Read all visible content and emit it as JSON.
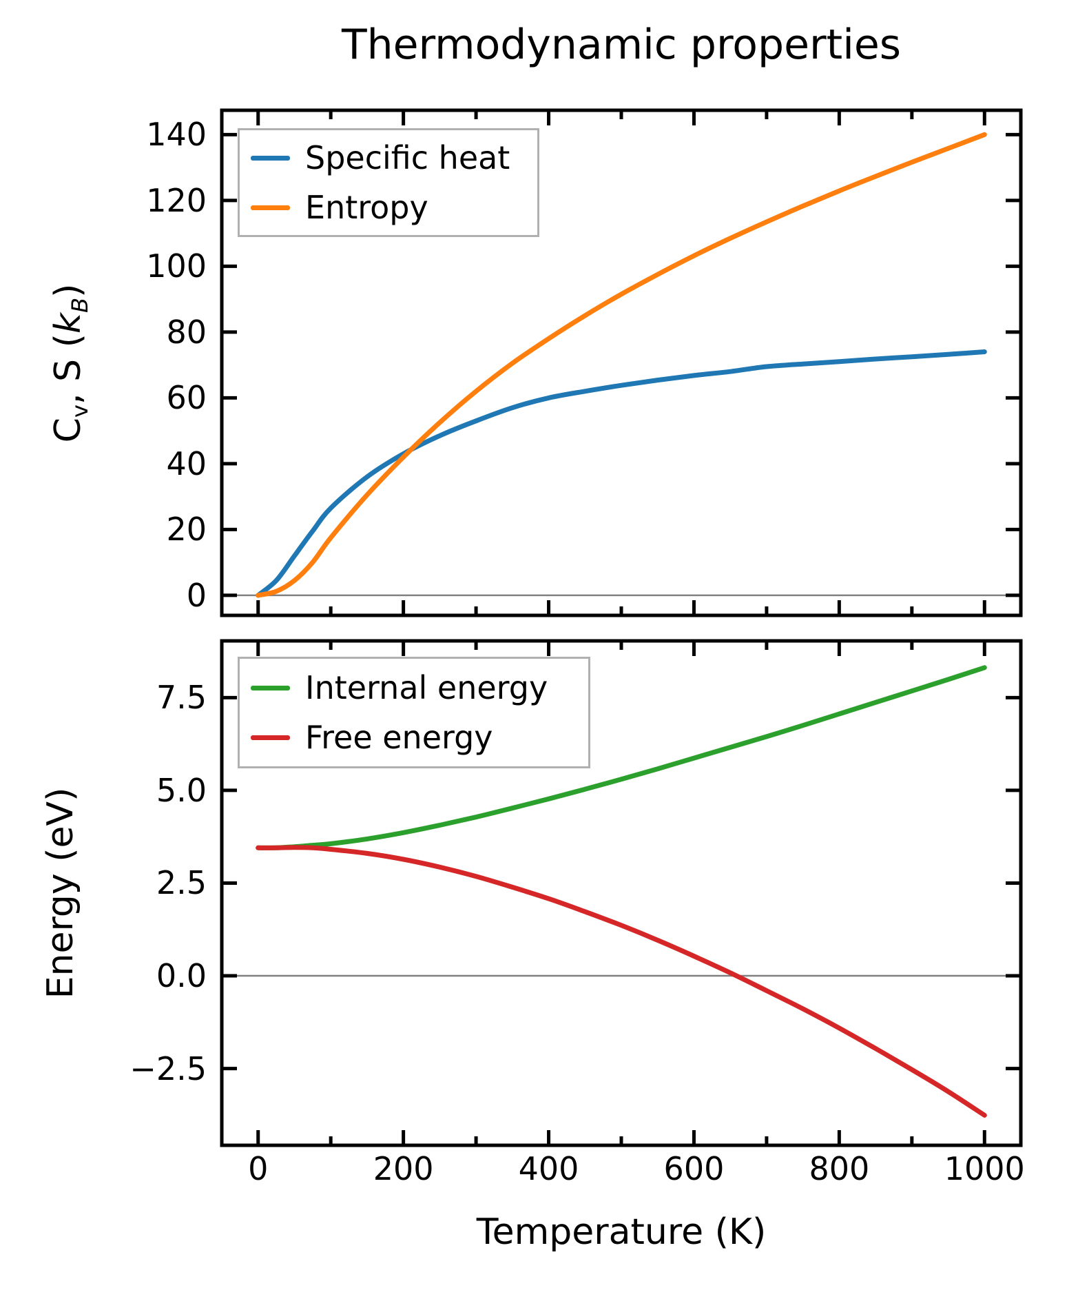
{
  "figure": {
    "title": "Thermodynamic properties"
  },
  "colors": {
    "specific_heat": "#1f77b4",
    "entropy": "#ff7f0e",
    "internal_energy": "#2ca02c",
    "free_energy": "#d62728",
    "zero_line": "#808080",
    "legend_border": "#b0b0b0",
    "axis": "#000000",
    "background": "#ffffff"
  },
  "x_axis": {
    "label": "Temperature (K)",
    "tick_labels": [
      "0",
      "200",
      "400",
      "600",
      "800",
      "1000"
    ],
    "tick_values": [
      0,
      200,
      400,
      600,
      800,
      1000
    ],
    "minor_tick_values": [
      100,
      300,
      500,
      700,
      900
    ]
  },
  "chart_data": [
    {
      "type": "line",
      "ylabel": "Cv, S (kB)",
      "ylabel_parts": {
        "base": "C",
        "base_sub": "v",
        "mid": ", S (",
        "k": "k",
        "k_sub": "B",
        "close": ")"
      },
      "xlim": [
        -50,
        1050
      ],
      "ylim": [
        -6.1,
        147.4
      ],
      "ytick_labels": [
        "0",
        "20",
        "40",
        "60",
        "80",
        "100",
        "120",
        "140"
      ],
      "ytick_values": [
        0,
        20,
        40,
        60,
        80,
        100,
        120,
        140
      ],
      "zero_line": 0,
      "grid": false,
      "legend_position": "upper left",
      "x": [
        0,
        25,
        50,
        75,
        100,
        150,
        200,
        250,
        300,
        350,
        400,
        450,
        500,
        550,
        600,
        650,
        700,
        750,
        800,
        850,
        900,
        950,
        1000
      ],
      "series": [
        {
          "name": "Specific heat",
          "color_key": "specific_heat",
          "values": [
            0,
            4.5,
            12,
            19.5,
            26.5,
            36,
            43,
            48.5,
            53,
            57,
            60,
            62,
            63.8,
            65.4,
            66.8,
            68,
            69.5,
            70.3,
            71,
            71.8,
            72.5,
            73.2,
            74
          ]
        },
        {
          "name": "Entropy",
          "color_key": "entropy",
          "values": [
            0,
            1.2,
            4.5,
            10,
            17.5,
            30.5,
            42,
            52.5,
            62,
            70.5,
            78,
            85,
            91.5,
            97.5,
            103.2,
            108.5,
            113.5,
            118.3,
            122.9,
            127.3,
            131.6,
            135.8,
            140
          ]
        }
      ]
    },
    {
      "type": "line",
      "ylabel": "Energy (eV)",
      "xlim": [
        -50,
        1050
      ],
      "ylim": [
        -4.57,
        9.03
      ],
      "ytick_labels": [
        "−2.5",
        "0.0",
        "2.5",
        "5.0",
        "7.5"
      ],
      "ytick_values": [
        -2.5,
        0,
        2.5,
        5,
        7.5
      ],
      "zero_line": 0,
      "grid": false,
      "legend_position": "upper left",
      "x": [
        0,
        25,
        50,
        75,
        100,
        150,
        200,
        250,
        300,
        350,
        400,
        450,
        500,
        550,
        600,
        650,
        700,
        750,
        800,
        850,
        900,
        950,
        1000
      ],
      "series": [
        {
          "name": "Internal energy",
          "color_key": "internal_energy",
          "values": [
            3.45,
            3.45,
            3.48,
            3.52,
            3.56,
            3.69,
            3.86,
            4.06,
            4.28,
            4.52,
            4.77,
            5.03,
            5.3,
            5.58,
            5.87,
            6.16,
            6.45,
            6.75,
            7.06,
            7.37,
            7.68,
            7.99,
            8.31
          ]
        },
        {
          "name": "Free energy",
          "color_key": "free_energy",
          "values": [
            3.45,
            3.45,
            3.46,
            3.45,
            3.41,
            3.3,
            3.14,
            2.93,
            2.68,
            2.39,
            2.08,
            1.73,
            1.36,
            0.96,
            0.53,
            0.08,
            -0.4,
            -0.89,
            -1.41,
            -1.96,
            -2.53,
            -3.12,
            -3.76
          ]
        }
      ]
    }
  ]
}
